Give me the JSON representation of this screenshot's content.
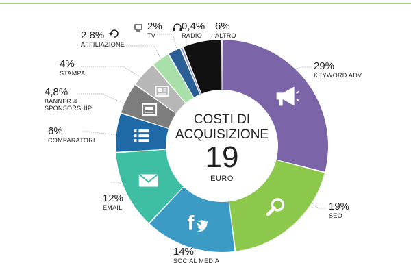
{
  "chart_data": {
    "type": "pie",
    "center": {
      "title_line1": "COSTI DI",
      "title_line2": "ACQUISIZIONE",
      "value": "19",
      "unit": "EURO"
    },
    "slices": [
      {
        "label": "KEYWORD ADV",
        "value": 29,
        "display": "29%",
        "color": "#7b64a8",
        "icon": "megaphone-icon"
      },
      {
        "label": "SEO",
        "value": 19,
        "display": "19%",
        "color": "#8cc84b",
        "icon": "magnifier-icon"
      },
      {
        "label": "SOCIAL MEDIA",
        "value": 14,
        "display": "14%",
        "color": "#3b9bc5",
        "icon": "facebook-twitter-icon"
      },
      {
        "label": "EMAIL",
        "value": 12,
        "display": "12%",
        "color": "#3ebfa4",
        "icon": "envelope-icon"
      },
      {
        "label": "COMPARATORI",
        "value": 6,
        "display": "6%",
        "color": "#1f6aa6",
        "icon": "list-icon"
      },
      {
        "label": "BANNER & SPONSORSHIP",
        "label_lines": [
          "BANNER &",
          "SPONSORSHIP"
        ],
        "value": 4.8,
        "display": "4,8%",
        "color": "#7d7d7d",
        "icon": "banner-icon"
      },
      {
        "label": "STAMPA",
        "value": 4,
        "display": "4%",
        "color": "#b7b7b7",
        "icon": "newspaper-icon"
      },
      {
        "label": "AFFILIAZIONE",
        "value": 2.8,
        "display": "2,8%",
        "color": "#a9dfa8",
        "icon": "refresh-icon"
      },
      {
        "label": "TV",
        "value": 2,
        "display": "2%",
        "color": "#2a5f96",
        "icon": "tv-icon"
      },
      {
        "label": "RADIO",
        "value": 0.4,
        "display": "0,4%",
        "color": "#9a9ad0",
        "icon": "headphones-icon"
      },
      {
        "label": "ALTRO",
        "value": 6,
        "display": "6%",
        "color": "#111111",
        "icon": ""
      }
    ]
  }
}
